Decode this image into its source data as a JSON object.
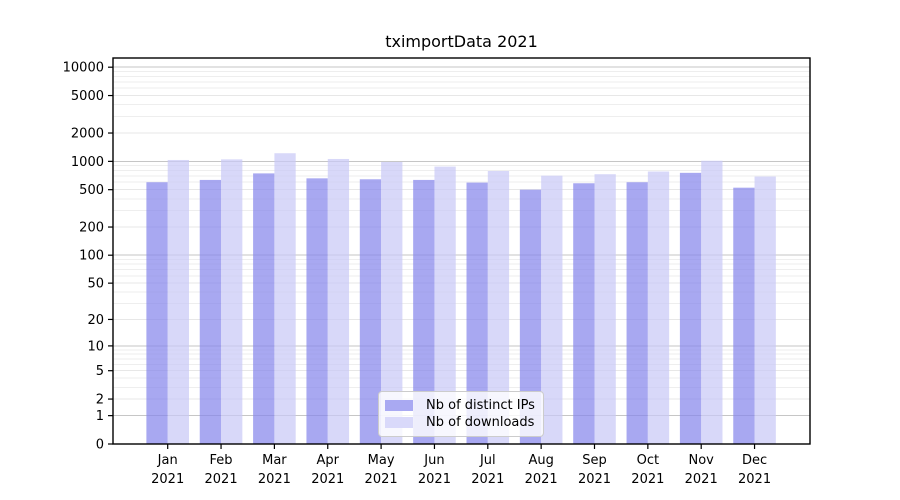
{
  "title": "tximportData 2021",
  "chart_data": {
    "type": "bar",
    "title": "tximportData 2021",
    "categories": [
      "Jan",
      "Feb",
      "Mar",
      "Apr",
      "May",
      "Jun",
      "Jul",
      "Aug",
      "Sep",
      "Oct",
      "Nov",
      "Dec"
    ],
    "category_year": "2021",
    "series": [
      {
        "name": "Nb of distinct IPs",
        "color": "#a9a9f2",
        "fill": "rgba(134,134,236,0.72)",
        "values": [
          600,
          635,
          745,
          660,
          645,
          635,
          595,
          500,
          585,
          600,
          755,
          525
        ]
      },
      {
        "name": "Nb of downloads",
        "color": "#d9d9fa",
        "fill": "rgba(201,201,247,0.72)",
        "values": [
          1035,
          1050,
          1220,
          1060,
          985,
          880,
          790,
          705,
          730,
          780,
          1015,
          690
        ]
      }
    ],
    "y_scale": "log1p",
    "ylim": [
      0,
      12000
    ],
    "y_ticks": [
      0,
      1,
      2,
      5,
      10,
      20,
      50,
      100,
      200,
      500,
      1000,
      2000,
      5000,
      10000
    ],
    "y_minor_ticks": [
      3,
      4,
      6,
      7,
      8,
      9,
      30,
      40,
      60,
      70,
      80,
      90,
      300,
      400,
      600,
      700,
      800,
      900,
      3000,
      4000,
      6000,
      7000,
      8000,
      9000
    ],
    "grid": true,
    "legend_position": "inside-bottom-center",
    "colors": {
      "background": "#ffffff",
      "spine": "#000000",
      "tick_text": "#000000",
      "major_grid": "#c6c6c6",
      "mid_grid": "#e7e7e7",
      "minor_grid": "#eeeeee",
      "legend_border": "#cccccc"
    }
  },
  "legend": {
    "items": [
      "Nb of distinct IPs",
      "Nb of downloads"
    ]
  }
}
